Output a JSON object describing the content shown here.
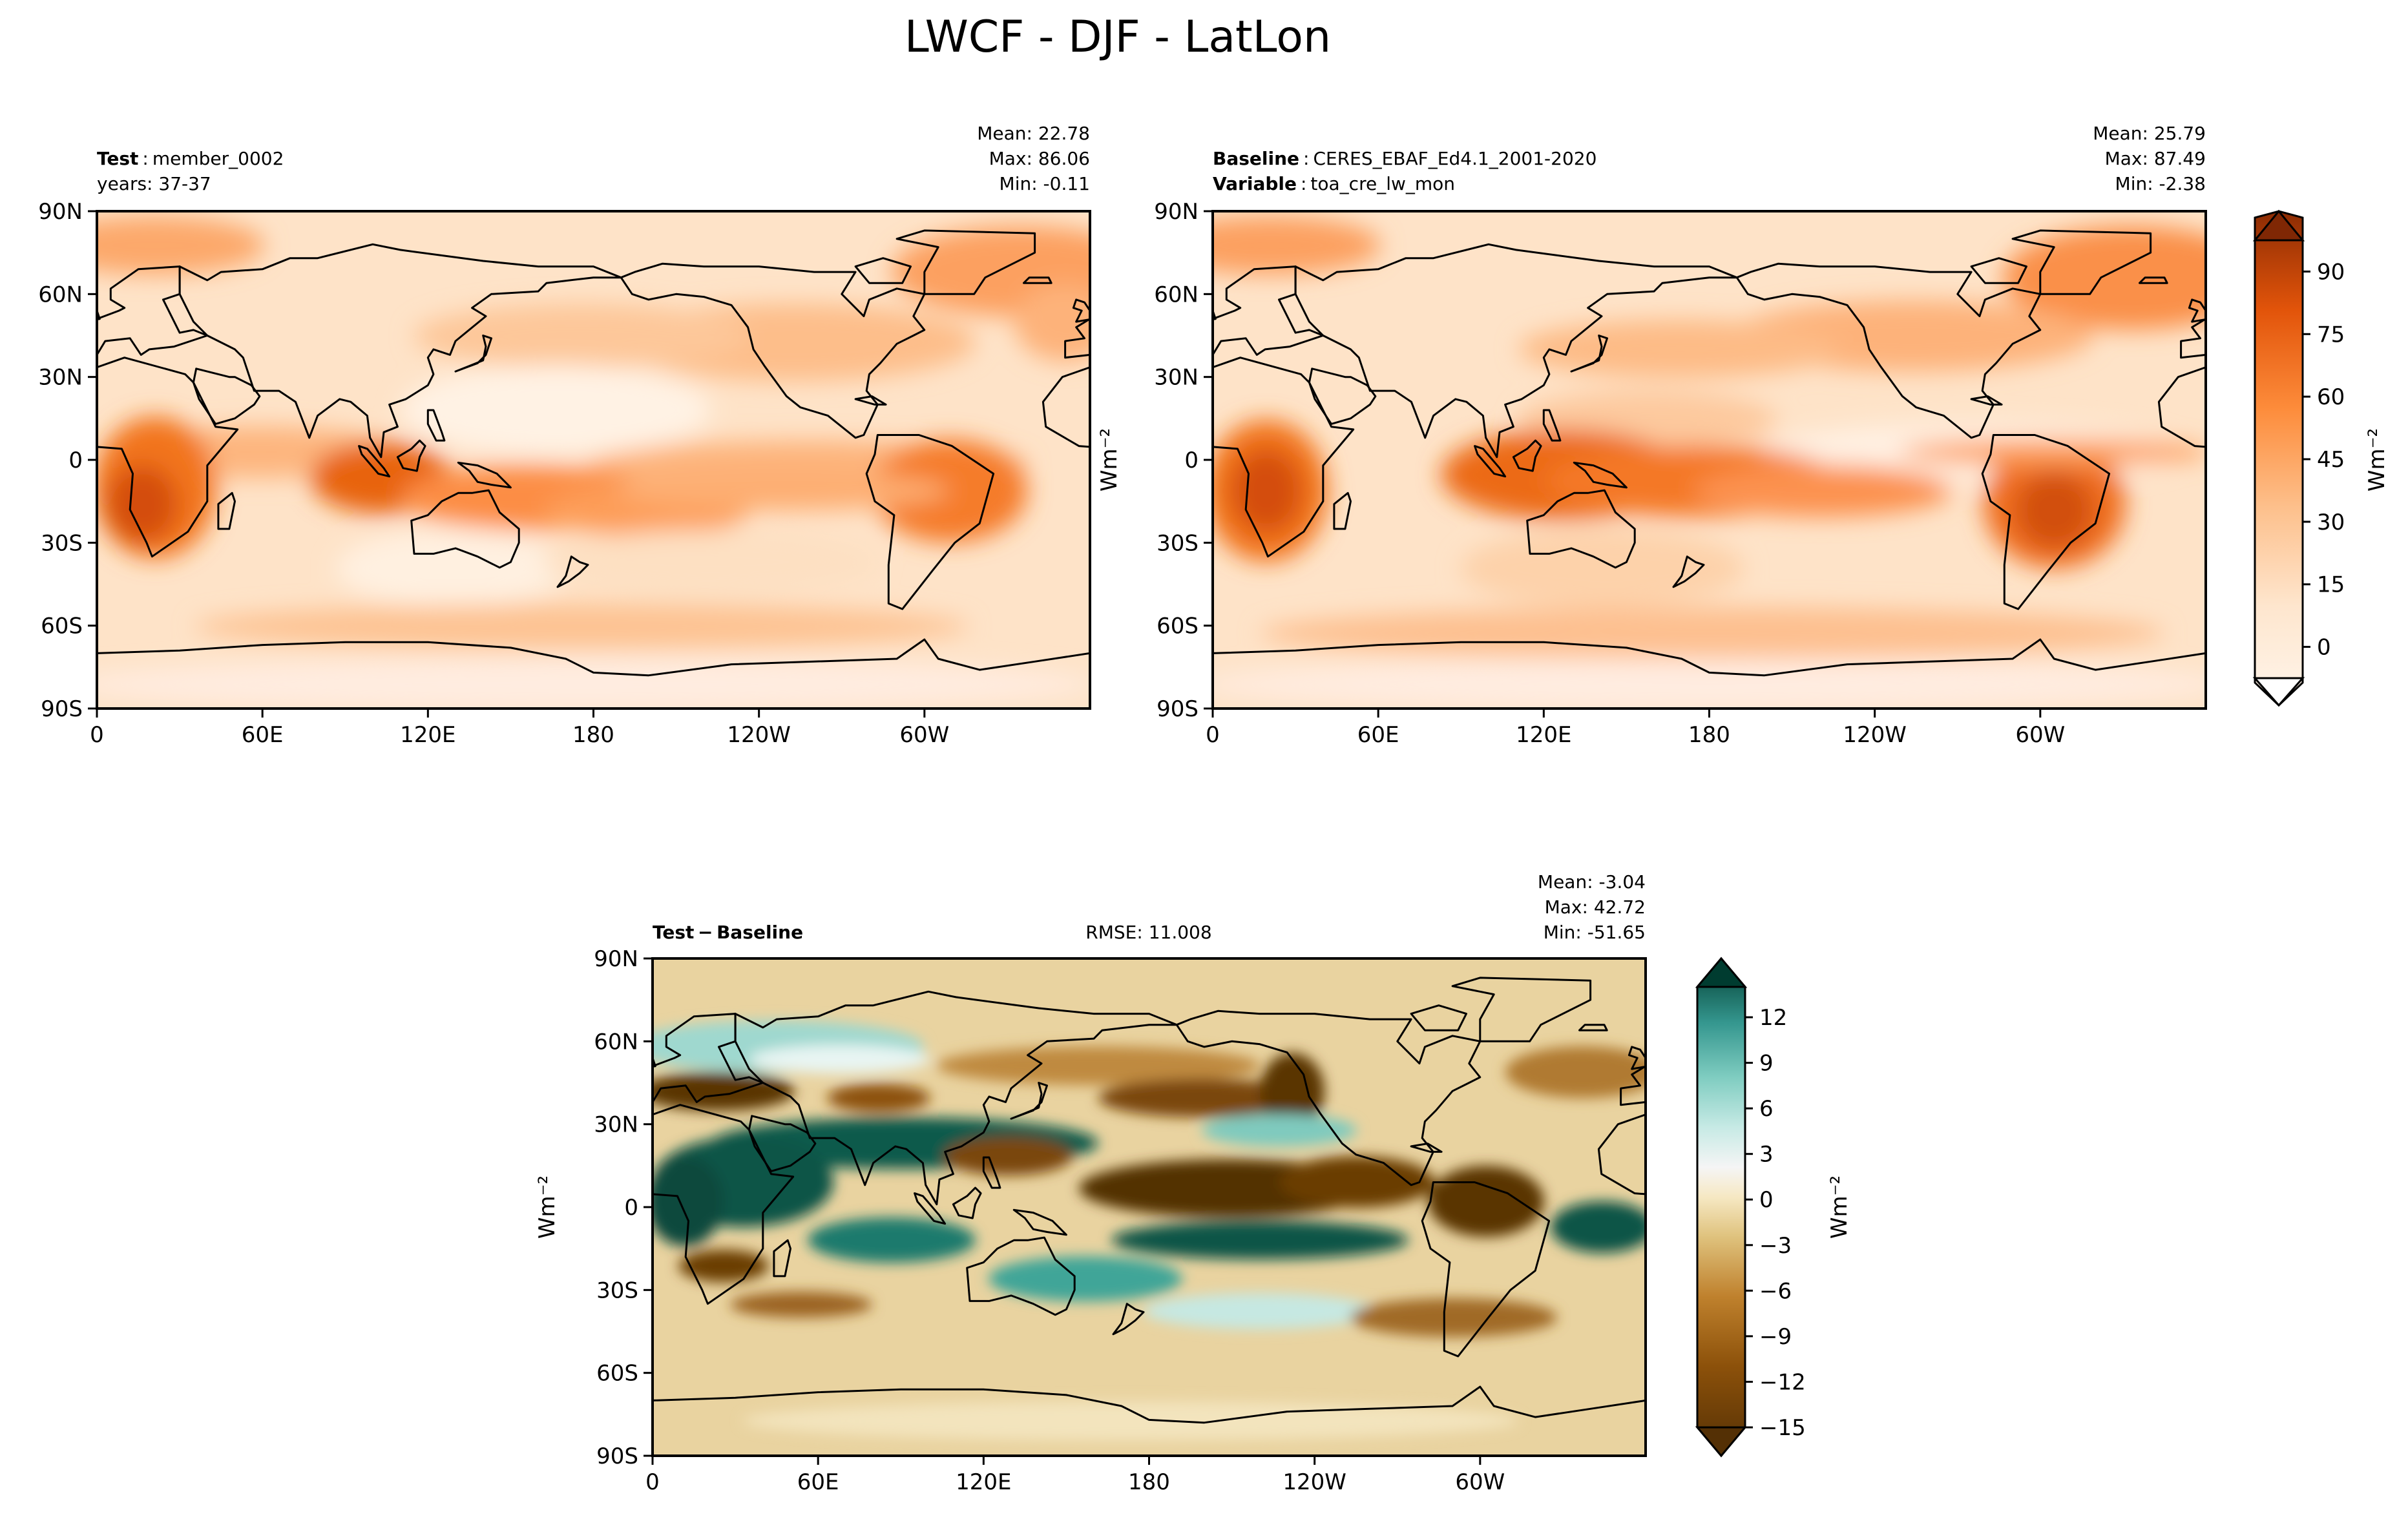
{
  "figure": {
    "title": "LWCF - DJF - LatLon"
  },
  "axes_ticks": {
    "lat": [
      "90N",
      "60N",
      "30N",
      "0",
      "30S",
      "60S",
      "90S"
    ],
    "lon": [
      "0",
      "60E",
      "120E",
      "180",
      "120W",
      "60W"
    ]
  },
  "chart_data": [
    {
      "type": "heatmap",
      "name": "test",
      "title_bold": "Test",
      "title_sep": ":",
      "title_value": "member_0002",
      "subtitle": "years: 37-37",
      "stats": {
        "mean": "Mean: 22.78",
        "max": "Max: 86.06",
        "min": "Min: -0.11"
      },
      "colormap": "Oranges",
      "vmin": -10,
      "vmax": 95
    },
    {
      "type": "heatmap",
      "name": "baseline",
      "title_bold": "Baseline",
      "title_sep": ":",
      "title_value": "CERES_EBAF_Ed4.1_2001-2020",
      "subtitle_bold": "Variable",
      "subtitle_sep": ":",
      "subtitle_value": "toa_cre_lw_mon",
      "stats": {
        "mean": "Mean: 25.79",
        "max": "Max: 87.49",
        "min": "Min: -2.38"
      },
      "colormap": "Oranges",
      "vmin": -10,
      "vmax": 95
    },
    {
      "type": "heatmap",
      "name": "difference",
      "title_bold": "Test − Baseline",
      "rmse": "RMSE: 11.008",
      "stats": {
        "mean": "Mean: -3.04",
        "max": "Max: 42.72",
        "min": "Min: -51.65"
      },
      "colormap": "BrBG",
      "vmin": -15,
      "vmax": 14
    }
  ],
  "colorbars": {
    "top": {
      "label": "Wm⁻²",
      "ticks": [
        "90",
        "75",
        "60",
        "45",
        "30",
        "15",
        "0"
      ],
      "values": [
        90,
        75,
        60,
        45,
        30,
        15,
        0
      ]
    },
    "bottom": {
      "label": "Wm⁻²",
      "ticks": [
        "12",
        "9",
        "6",
        "3",
        "0",
        "−3",
        "−6",
        "−9",
        "−12",
        "−15"
      ],
      "values": [
        12,
        9,
        6,
        3,
        0,
        -3,
        -6,
        -9,
        -12,
        -15
      ]
    }
  },
  "ylabel_mid": "Wm⁻²",
  "ylabel_diff": "Wm⁻²",
  "colors": {
    "land_outline": "#000000",
    "frame": "#000000"
  }
}
